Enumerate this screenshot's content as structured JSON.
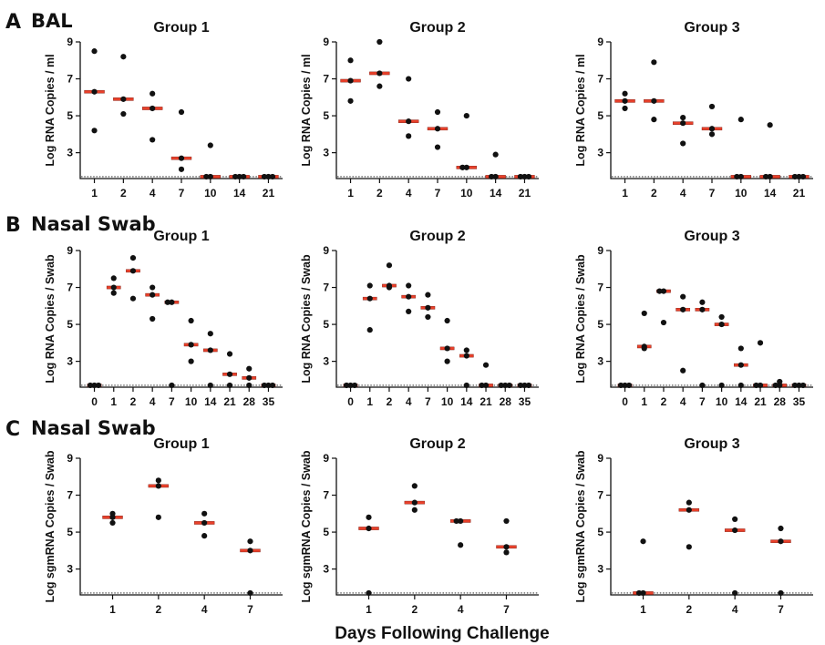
{
  "figure": {
    "x_axis_label": "Days Following Challenge",
    "colors": {
      "median": "#e8402a",
      "median_edge": "#7a1a10",
      "point": "#111111",
      "axis": "#111111"
    }
  },
  "rows": [
    {
      "letter": "A",
      "title": "BAL"
    },
    {
      "letter": "B",
      "title": "Nasal Swab"
    },
    {
      "letter": "C",
      "title": "Nasal Swab"
    }
  ],
  "chart_data": [
    {
      "type": "scatter",
      "row": 0,
      "title": "Group 1",
      "ylabel": "Log RNA Copies / ml",
      "ylim": [
        1.6,
        9
      ],
      "yticks": [
        3,
        5,
        7,
        9
      ],
      "limit_of_detection": 1.7,
      "categories": [
        "1",
        "2",
        "4",
        "7",
        "10",
        "14",
        "21"
      ],
      "points": [
        [
          8.5,
          6.3,
          4.2
        ],
        [
          8.2,
          5.1,
          5.9
        ],
        [
          6.2,
          5.4,
          3.7
        ],
        [
          5.2,
          2.1,
          2.7
        ],
        [
          3.4,
          1.7,
          1.7
        ],
        [
          1.7,
          1.7,
          1.7
        ],
        [
          1.7,
          1.7,
          1.7
        ]
      ],
      "medians": [
        6.3,
        5.9,
        5.4,
        2.7,
        1.7,
        1.7,
        1.7
      ]
    },
    {
      "type": "scatter",
      "row": 0,
      "title": "Group 2",
      "ylabel": "Log RNA Copies / ml",
      "ylim": [
        1.6,
        9
      ],
      "yticks": [
        3,
        5,
        7,
        9
      ],
      "limit_of_detection": 1.7,
      "categories": [
        "1",
        "2",
        "4",
        "7",
        "10",
        "14",
        "21"
      ],
      "points": [
        [
          8.0,
          6.9,
          5.8
        ],
        [
          9.0,
          7.3,
          6.6
        ],
        [
          7.0,
          4.7,
          3.9
        ],
        [
          5.2,
          4.3,
          3.3
        ],
        [
          5.0,
          2.2,
          2.2
        ],
        [
          2.9,
          1.7,
          1.7
        ],
        [
          1.7,
          1.7,
          1.7
        ]
      ],
      "medians": [
        6.9,
        7.3,
        4.7,
        4.3,
        2.2,
        1.7,
        1.7
      ]
    },
    {
      "type": "scatter",
      "row": 0,
      "title": "Group 3",
      "ylabel": "Log RNA Copies / ml",
      "ylim": [
        1.6,
        9
      ],
      "yticks": [
        3,
        5,
        7,
        9
      ],
      "limit_of_detection": 1.7,
      "categories": [
        "1",
        "2",
        "4",
        "7",
        "10",
        "14",
        "21"
      ],
      "points": [
        [
          6.2,
          5.8,
          5.4
        ],
        [
          7.9,
          5.8,
          4.8
        ],
        [
          4.9,
          4.6,
          3.5
        ],
        [
          5.5,
          4.3,
          4.0
        ],
        [
          4.8,
          1.7,
          1.7
        ],
        [
          4.5,
          1.7,
          1.7
        ],
        [
          1.7,
          1.7,
          1.7
        ]
      ],
      "medians": [
        5.8,
        5.8,
        4.6,
        4.3,
        1.7,
        1.7,
        1.7
      ]
    },
    {
      "type": "scatter",
      "row": 1,
      "title": "Group 1",
      "ylabel": "Log RNA Copies / Swab",
      "ylim": [
        1.6,
        9
      ],
      "yticks": [
        3,
        5,
        7,
        9
      ],
      "limit_of_detection": 1.7,
      "categories": [
        "0",
        "1",
        "2",
        "4",
        "7",
        "10",
        "14",
        "21",
        "28",
        "35"
      ],
      "points": [
        [
          1.7,
          1.7,
          1.7
        ],
        [
          7.5,
          7.0,
          6.7
        ],
        [
          8.6,
          7.9,
          6.4
        ],
        [
          7.0,
          6.6,
          5.3
        ],
        [
          6.2,
          6.2,
          1.7
        ],
        [
          5.2,
          3.9,
          3.0
        ],
        [
          4.5,
          3.6,
          1.7
        ],
        [
          3.4,
          2.3,
          1.7
        ],
        [
          2.6,
          2.1,
          1.7
        ],
        [
          1.7,
          1.7,
          1.7
        ]
      ],
      "medians": [
        1.7,
        7.0,
        7.9,
        6.6,
        6.2,
        3.9,
        3.6,
        2.3,
        2.1,
        1.7
      ]
    },
    {
      "type": "scatter",
      "row": 1,
      "title": "Group 2",
      "ylabel": "Log RNA Copies / Swab",
      "ylim": [
        1.6,
        9
      ],
      "yticks": [
        3,
        5,
        7,
        9
      ],
      "limit_of_detection": 1.7,
      "categories": [
        "0",
        "1",
        "2",
        "4",
        "7",
        "10",
        "14",
        "21",
        "28",
        "35"
      ],
      "points": [
        [
          1.7,
          1.7,
          1.7
        ],
        [
          7.1,
          6.4,
          4.7
        ],
        [
          8.2,
          7.1,
          7.0
        ],
        [
          7.1,
          6.5,
          5.7
        ],
        [
          6.6,
          5.9,
          5.4
        ],
        [
          5.2,
          3.7,
          3.0
        ],
        [
          3.6,
          3.3,
          1.7
        ],
        [
          2.8,
          1.7,
          1.7
        ],
        [
          1.7,
          1.7,
          1.7
        ],
        [
          1.7,
          1.7,
          1.7
        ]
      ],
      "medians": [
        1.7,
        6.4,
        7.1,
        6.5,
        5.9,
        3.7,
        3.3,
        1.7,
        1.7,
        1.7
      ]
    },
    {
      "type": "scatter",
      "row": 1,
      "title": "Group 3",
      "ylabel": "Log RNA Copies / Swab",
      "ylim": [
        1.6,
        9
      ],
      "yticks": [
        3,
        5,
        7,
        9
      ],
      "limit_of_detection": 1.7,
      "categories": [
        "0",
        "1",
        "2",
        "4",
        "7",
        "10",
        "14",
        "21",
        "28",
        "35"
      ],
      "points": [
        [
          1.7,
          1.7,
          1.7
        ],
        [
          5.6,
          3.8,
          3.7
        ],
        [
          6.8,
          6.8,
          5.1
        ],
        [
          6.5,
          5.8,
          2.5
        ],
        [
          6.2,
          5.8,
          1.7
        ],
        [
          5.4,
          5.0,
          1.7
        ],
        [
          3.7,
          2.8,
          1.7
        ],
        [
          4.0,
          1.7,
          1.7
        ],
        [
          1.9,
          1.7,
          1.7
        ],
        [
          1.7,
          1.7,
          1.7
        ]
      ],
      "medians": [
        1.7,
        3.8,
        6.8,
        5.8,
        5.8,
        5.0,
        2.8,
        1.7,
        1.7,
        1.7
      ]
    },
    {
      "type": "scatter",
      "row": 2,
      "title": "Group 1",
      "ylabel": "Log sgmRNA Copies / Swab",
      "ylim": [
        1.6,
        9
      ],
      "yticks": [
        3,
        5,
        7,
        9
      ],
      "limit_of_detection": 1.7,
      "categories": [
        "1",
        "2",
        "4",
        "7"
      ],
      "points": [
        [
          6.0,
          5.8,
          5.5
        ],
        [
          7.8,
          7.5,
          5.8
        ],
        [
          6.0,
          5.5,
          4.8
        ],
        [
          4.5,
          4.0,
          1.7
        ]
      ],
      "medians": [
        5.8,
        7.5,
        5.5,
        4.0
      ]
    },
    {
      "type": "scatter",
      "row": 2,
      "title": "Group 2",
      "ylabel": "Log sgmRNA Copies / Swab",
      "ylim": [
        1.6,
        9
      ],
      "yticks": [
        3,
        5,
        7,
        9
      ],
      "limit_of_detection": 1.7,
      "categories": [
        "1",
        "2",
        "4",
        "7"
      ],
      "points": [
        [
          5.8,
          5.2,
          1.7
        ],
        [
          7.5,
          6.6,
          6.2
        ],
        [
          5.6,
          5.6,
          4.3
        ],
        [
          5.6,
          4.2,
          3.9
        ]
      ],
      "medians": [
        5.2,
        6.6,
        5.6,
        4.2
      ]
    },
    {
      "type": "scatter",
      "row": 2,
      "title": "Group 3",
      "ylabel": "Log sgmRNA Copies / Swab",
      "ylim": [
        1.6,
        9
      ],
      "yticks": [
        3,
        5,
        7,
        9
      ],
      "limit_of_detection": 1.7,
      "categories": [
        "1",
        "2",
        "4",
        "7"
      ],
      "points": [
        [
          4.5,
          1.7,
          1.7
        ],
        [
          6.6,
          6.2,
          4.2
        ],
        [
          5.7,
          5.1,
          1.7
        ],
        [
          5.2,
          4.5,
          1.7
        ]
      ],
      "medians": [
        1.7,
        6.2,
        5.1,
        4.5
      ]
    }
  ]
}
